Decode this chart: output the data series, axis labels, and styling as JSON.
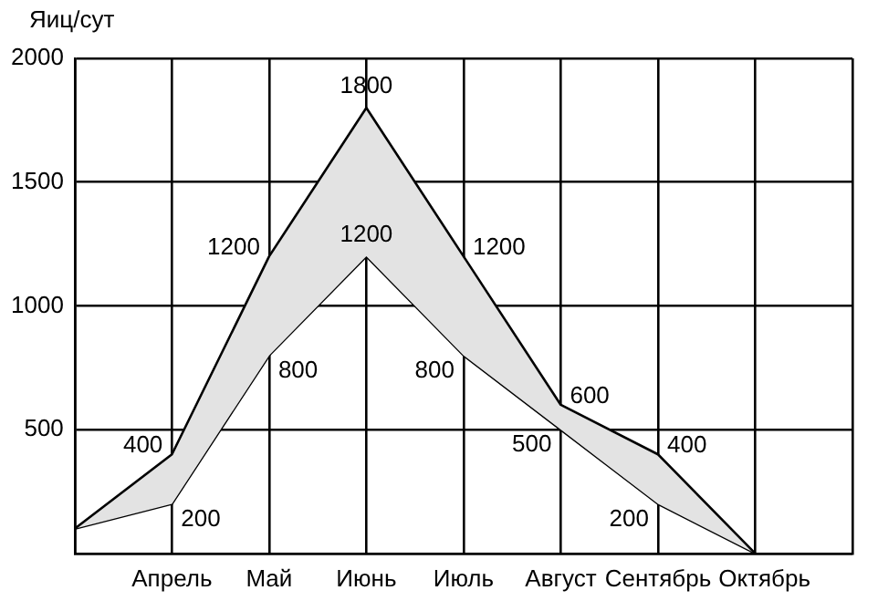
{
  "chart_data": {
    "type": "line",
    "ylabel": "Яиц/сут",
    "categories": [
      null,
      "Апрель",
      "Май",
      "Июнь",
      "Июль",
      "Август",
      "Сентябрь",
      "Октябрь",
      null
    ],
    "series": [
      {
        "type": "area",
        "color": "#000000",
        "values": [
          100,
          400,
          1200,
          1800,
          1200,
          600,
          400,
          0,
          null
        ],
        "value_labels": [
          null,
          "400",
          "1200",
          "1800",
          "1200",
          "600",
          "400",
          null,
          null
        ]
      },
      {
        "color": "#000000",
        "values": [
          100,
          200,
          800,
          1200,
          800,
          500,
          200,
          0,
          null
        ],
        "value_labels": [
          null,
          "200",
          "800",
          "1200",
          "800",
          "500",
          "200",
          null,
          null
        ]
      }
    ],
    "ylim": [
      0,
      2000
    ],
    "yticks": [
      {
        "value": 0,
        "label": null
      },
      500,
      1000,
      1500,
      2000
    ],
    "grid": true,
    "marker": "none",
    "line_style": "solid"
  }
}
